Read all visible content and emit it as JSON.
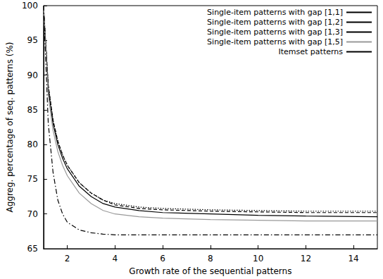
{
  "chart_data": {
    "type": "line",
    "x_label": "Growth rate of the sequential patterns",
    "y_label": "Aggreg. percentage of seq. patterns (%)",
    "x": [
      1,
      1.2,
      1.4,
      1.6,
      1.8,
      2,
      2.5,
      3,
      3.5,
      4,
      5,
      6,
      8,
      10,
      12,
      15
    ],
    "series": [
      {
        "name": "Single-item patterns with gap [1,1]",
        "color": "#000000",
        "line_style": "solid",
        "values": [
          100,
          88,
          83,
          80,
          78,
          76.5,
          74,
          72.5,
          71.5,
          71,
          70.5,
          70.2,
          70,
          69.8,
          69.7,
          69.6
        ]
      },
      {
        "name": "Single-item patterns with gap [1,2]",
        "color": "#000000",
        "line_style": "dashed",
        "values": [
          100,
          88.5,
          83.5,
          80.5,
          78.5,
          77,
          74.5,
          73,
          72,
          71.3,
          70.8,
          70.6,
          70.4,
          70.3,
          70.2,
          70.2
        ]
      },
      {
        "name": "Single-item patterns with gap [1,3]",
        "color": "#000000",
        "line_style": "dotted",
        "values": [
          100,
          88.5,
          83.5,
          80.5,
          78.5,
          77,
          74.5,
          73,
          72,
          71.5,
          71,
          70.8,
          70.6,
          70.5,
          70.4,
          70.4
        ]
      },
      {
        "name": "Single-item patterns with gap [1,5]",
        "color": "#999999",
        "line_style": "solid",
        "values": [
          100,
          87,
          82,
          79,
          77,
          75.5,
          73,
          71.5,
          70.5,
          70,
          69.6,
          69.4,
          69.2,
          69.1,
          69,
          69
        ]
      },
      {
        "name": "Itemset patterns",
        "color": "#000000",
        "line_style": "dashdot",
        "values": [
          100,
          83,
          76,
          72,
          70,
          68.8,
          67.7,
          67.3,
          67.1,
          67,
          67,
          67,
          67,
          67,
          67,
          67
        ]
      }
    ],
    "xlim": [
      1,
      15
    ],
    "xticks": [
      2,
      4,
      6,
      8,
      10,
      12,
      14
    ],
    "ylim": [
      65,
      100
    ],
    "yticks": [
      65,
      70,
      75,
      80,
      85,
      90,
      95,
      100
    ],
    "legend": "upper right",
    "grid": false
  }
}
